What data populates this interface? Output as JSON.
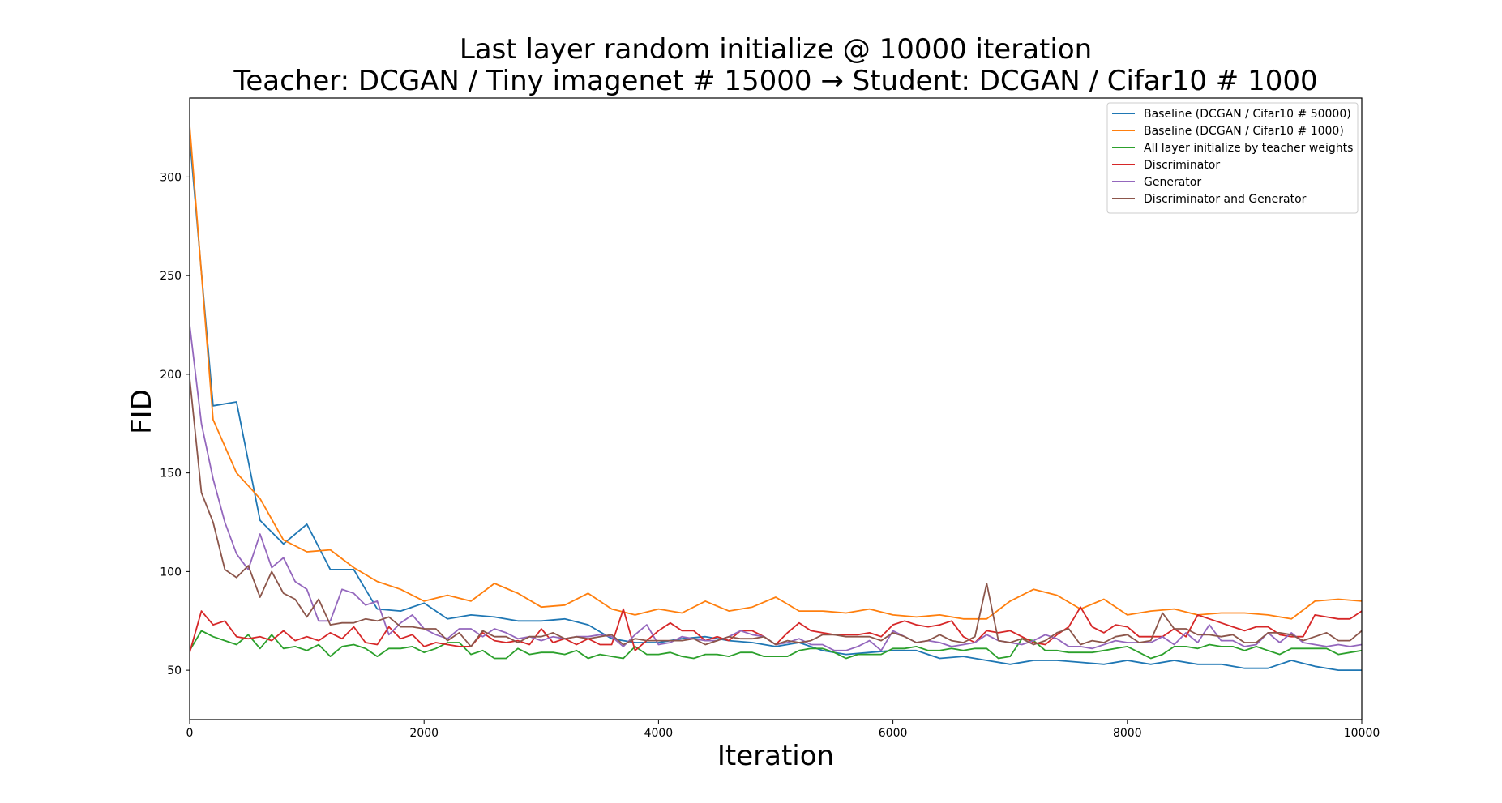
{
  "chart_data": {
    "type": "line",
    "title": "Last layer random initialize @ 10000 iteration",
    "subtitle": "Teacher: DCGAN / Tiny imagenet # 15000 → Student: DCGAN / Cifar10 # 1000",
    "xlabel": "Iteration",
    "ylabel": "FID",
    "xlim": [
      0,
      10000
    ],
    "ylim": [
      25,
      340
    ],
    "xticks": [
      0,
      2000,
      4000,
      6000,
      8000,
      10000
    ],
    "yticks": [
      50,
      100,
      150,
      200,
      250,
      300
    ],
    "grid": false,
    "legend_position": "top-right",
    "series": [
      {
        "name": "Baseline (DCGAN  / Cifar10 # 50000)",
        "color": "#1f77b4",
        "x": [
          0,
          200,
          400,
          600,
          800,
          1000,
          1200,
          1400,
          1600,
          1800,
          2000,
          2200,
          2400,
          2600,
          2800,
          3000,
          3200,
          3400,
          3600,
          3800,
          4000,
          4200,
          4400,
          4600,
          4800,
          5000,
          5200,
          5400,
          5600,
          5800,
          6000,
          6200,
          6400,
          6600,
          6800,
          7000,
          7200,
          7400,
          7600,
          7800,
          8000,
          8200,
          8400,
          8600,
          8800,
          9000,
          9200,
          9400,
          9600,
          9800,
          10000
        ],
        "y": [
          320,
          184,
          186,
          126,
          114,
          124,
          101,
          101,
          81,
          80,
          84,
          76,
          78,
          77,
          75,
          75,
          76,
          73,
          66,
          64,
          64,
          66,
          67,
          65,
          64,
          62,
          64,
          60,
          58,
          59,
          60,
          60,
          56,
          57,
          55,
          53,
          55,
          55,
          54,
          53,
          55,
          53,
          55,
          53,
          53,
          51,
          51,
          55,
          52,
          50,
          50
        ]
      },
      {
        "name": "Baseline (DCGAN  / Cifar10 # 1000)",
        "color": "#ff7f0e",
        "x": [
          0,
          200,
          400,
          600,
          800,
          1000,
          1200,
          1400,
          1600,
          1800,
          2000,
          2200,
          2400,
          2600,
          2800,
          3000,
          3200,
          3400,
          3600,
          3800,
          4000,
          4200,
          4400,
          4600,
          4800,
          5000,
          5200,
          5400,
          5600,
          5800,
          6000,
          6200,
          6400,
          6600,
          6800,
          7000,
          7200,
          7400,
          7600,
          7800,
          8000,
          8200,
          8400,
          8600,
          8800,
          9000,
          9200,
          9400,
          9600,
          9800,
          10000
        ],
        "y": [
          326,
          177,
          150,
          137,
          116,
          110,
          111,
          102,
          95,
          91,
          85,
          88,
          85,
          94,
          89,
          82,
          83,
          89,
          81,
          78,
          81,
          79,
          85,
          80,
          82,
          87,
          80,
          80,
          79,
          81,
          78,
          77,
          78,
          76,
          76,
          85,
          91,
          88,
          81,
          86,
          78,
          80,
          81,
          78,
          79,
          79,
          78,
          76,
          85,
          86,
          85
        ]
      },
      {
        "name": "All layer initialize by teacher weights",
        "color": "#2ca02c",
        "x": [
          0,
          100,
          200,
          300,
          400,
          500,
          600,
          700,
          800,
          900,
          1000,
          1100,
          1200,
          1300,
          1400,
          1500,
          1600,
          1700,
          1800,
          1900,
          2000,
          2100,
          2200,
          2300,
          2400,
          2500,
          2600,
          2700,
          2800,
          2900,
          3000,
          3100,
          3200,
          3300,
          3400,
          3500,
          3600,
          3700,
          3800,
          3900,
          4000,
          4100,
          4200,
          4300,
          4400,
          4500,
          4600,
          4700,
          4800,
          4900,
          5000,
          5100,
          5200,
          5300,
          5400,
          5500,
          5600,
          5700,
          5800,
          5900,
          6000,
          6100,
          6200,
          6300,
          6400,
          6500,
          6600,
          6700,
          6800,
          6900,
          7000,
          7100,
          7200,
          7300,
          7400,
          7500,
          7600,
          7700,
          7800,
          7900,
          8000,
          8100,
          8200,
          8300,
          8400,
          8500,
          8600,
          8700,
          8800,
          8900,
          9000,
          9100,
          9200,
          9300,
          9400,
          9500,
          9600,
          9700,
          9800,
          9900,
          10000
        ],
        "y": [
          60,
          70,
          67,
          65,
          63,
          68,
          61,
          68,
          61,
          62,
          60,
          63,
          57,
          62,
          63,
          61,
          57,
          61,
          61,
          62,
          59,
          61,
          64,
          64,
          58,
          60,
          56,
          56,
          61,
          58,
          59,
          59,
          58,
          60,
          56,
          58,
          57,
          56,
          62,
          58,
          58,
          59,
          57,
          56,
          58,
          58,
          57,
          59,
          59,
          57,
          57,
          57,
          60,
          61,
          61,
          59,
          56,
          58,
          58,
          58,
          61,
          61,
          62,
          60,
          60,
          61,
          60,
          61,
          61,
          56,
          57,
          66,
          65,
          60,
          60,
          59,
          59,
          59,
          60,
          61,
          62,
          59,
          56,
          58,
          62,
          62,
          61,
          63,
          62,
          62,
          60,
          62,
          60,
          58,
          61,
          61,
          61,
          61,
          58,
          59,
          60
        ]
      },
      {
        "name": "Discriminator",
        "color": "#d62728",
        "x": [
          0,
          100,
          200,
          300,
          400,
          500,
          600,
          700,
          800,
          900,
          1000,
          1100,
          1200,
          1300,
          1400,
          1500,
          1600,
          1700,
          1800,
          1900,
          2000,
          2100,
          2200,
          2300,
          2400,
          2500,
          2600,
          2700,
          2800,
          2900,
          3000,
          3100,
          3200,
          3300,
          3400,
          3500,
          3600,
          3700,
          3800,
          3900,
          4000,
          4100,
          4200,
          4300,
          4400,
          4500,
          4600,
          4700,
          4800,
          4900,
          5000,
          5100,
          5200,
          5300,
          5400,
          5500,
          5600,
          5700,
          5800,
          5900,
          6000,
          6100,
          6200,
          6300,
          6400,
          6500,
          6600,
          6700,
          6800,
          6900,
          7000,
          7100,
          7200,
          7300,
          7400,
          7500,
          7600,
          7700,
          7800,
          7900,
          8000,
          8100,
          8200,
          8300,
          8400,
          8500,
          8600,
          8700,
          8800,
          8900,
          9000,
          9100,
          9200,
          9300,
          9400,
          9500,
          9600,
          9700,
          9800,
          9900,
          10000
        ],
        "y": [
          59,
          80,
          73,
          75,
          67,
          66,
          67,
          65,
          70,
          65,
          67,
          65,
          69,
          66,
          72,
          64,
          63,
          72,
          66,
          68,
          62,
          64,
          63,
          62,
          62,
          69,
          65,
          64,
          65,
          63,
          71,
          64,
          66,
          63,
          66,
          63,
          63,
          81,
          60,
          65,
          70,
          74,
          70,
          70,
          65,
          67,
          65,
          70,
          70,
          67,
          63,
          69,
          74,
          70,
          69,
          68,
          68,
          68,
          69,
          67,
          73,
          75,
          73,
          72,
          73,
          75,
          67,
          64,
          70,
          69,
          70,
          67,
          64,
          63,
          68,
          72,
          82,
          72,
          69,
          73,
          72,
          67,
          67,
          67,
          71,
          67,
          78,
          76,
          74,
          72,
          70,
          72,
          72,
          68,
          67,
          67,
          78,
          77,
          76,
          76,
          80
        ]
      },
      {
        "name": "Generator",
        "color": "#9467bd",
        "x": [
          0,
          100,
          200,
          300,
          400,
          500,
          600,
          700,
          800,
          900,
          1000,
          1100,
          1200,
          1300,
          1400,
          1500,
          1600,
          1700,
          1800,
          1900,
          2000,
          2100,
          2200,
          2300,
          2400,
          2500,
          2600,
          2700,
          2800,
          2900,
          3000,
          3100,
          3200,
          3300,
          3400,
          3500,
          3600,
          3700,
          3800,
          3900,
          4000,
          4100,
          4200,
          4300,
          4400,
          4500,
          4600,
          4700,
          4800,
          4900,
          5000,
          5100,
          5200,
          5300,
          5400,
          5500,
          5600,
          5700,
          5800,
          5900,
          6000,
          6100,
          6200,
          6300,
          6400,
          6500,
          6600,
          6700,
          6800,
          6900,
          7000,
          7100,
          7200,
          7300,
          7400,
          7500,
          7600,
          7700,
          7800,
          7900,
          8000,
          8100,
          8200,
          8300,
          8400,
          8500,
          8600,
          8700,
          8800,
          8900,
          9000,
          9100,
          9200,
          9300,
          9400,
          9500,
          9600,
          9700,
          9800,
          9900,
          10000
        ],
        "y": [
          225,
          175,
          147,
          125,
          109,
          101,
          119,
          102,
          107,
          95,
          91,
          75,
          75,
          91,
          89,
          83,
          85,
          68,
          74,
          78,
          71,
          68,
          66,
          71,
          71,
          67,
          71,
          69,
          66,
          67,
          65,
          67,
          66,
          67,
          67,
          68,
          67,
          62,
          68,
          73,
          63,
          64,
          67,
          66,
          65,
          65,
          67,
          70,
          68,
          67,
          63,
          64,
          66,
          63,
          63,
          60,
          60,
          62,
          65,
          60,
          70,
          67,
          64,
          65,
          64,
          62,
          63,
          64,
          68,
          65,
          64,
          63,
          65,
          68,
          66,
          62,
          62,
          61,
          63,
          65,
          64,
          64,
          64,
          67,
          63,
          69,
          64,
          73,
          65,
          65,
          62,
          63,
          69,
          64,
          69,
          64,
          63,
          62,
          63,
          62,
          63
        ]
      },
      {
        "name": "Discriminator and Generator",
        "color": "#8c564b",
        "x": [
          0,
          100,
          200,
          300,
          400,
          500,
          600,
          700,
          800,
          900,
          1000,
          1100,
          1200,
          1300,
          1400,
          1500,
          1600,
          1700,
          1800,
          1900,
          2000,
          2100,
          2200,
          2300,
          2400,
          2500,
          2600,
          2700,
          2800,
          2900,
          3000,
          3100,
          3200,
          3300,
          3400,
          3500,
          3600,
          3700,
          3800,
          3900,
          4000,
          4100,
          4200,
          4300,
          4400,
          4500,
          4600,
          4700,
          4800,
          4900,
          5000,
          5100,
          5200,
          5300,
          5400,
          5500,
          5600,
          5700,
          5800,
          5900,
          6000,
          6100,
          6200,
          6300,
          6400,
          6500,
          6600,
          6700,
          6800,
          6900,
          7000,
          7100,
          7200,
          7300,
          7400,
          7500,
          7600,
          7700,
          7800,
          7900,
          8000,
          8100,
          8200,
          8300,
          8400,
          8500,
          8600,
          8700,
          8800,
          8900,
          9000,
          9100,
          9200,
          9300,
          9400,
          9500,
          9600,
          9700,
          9800,
          9900,
          10000
        ],
        "y": [
          198,
          140,
          125,
          101,
          97,
          103,
          87,
          100,
          89,
          86,
          77,
          86,
          73,
          74,
          74,
          76,
          75,
          77,
          72,
          72,
          71,
          71,
          65,
          69,
          62,
          70,
          67,
          67,
          64,
          67,
          67,
          69,
          66,
          67,
          66,
          67,
          68,
          63,
          66,
          65,
          65,
          65,
          65,
          66,
          63,
          65,
          67,
          66,
          66,
          67,
          63,
          65,
          64,
          65,
          68,
          68,
          67,
          67,
          67,
          65,
          69,
          67,
          64,
          65,
          68,
          65,
          64,
          67,
          94,
          65,
          64,
          66,
          63,
          65,
          69,
          71,
          63,
          65,
          64,
          67,
          68,
          64,
          65,
          79,
          71,
          71,
          68,
          68,
          67,
          68,
          64,
          64,
          69,
          69,
          68,
          65,
          67,
          69,
          65,
          65,
          70
        ]
      }
    ]
  }
}
